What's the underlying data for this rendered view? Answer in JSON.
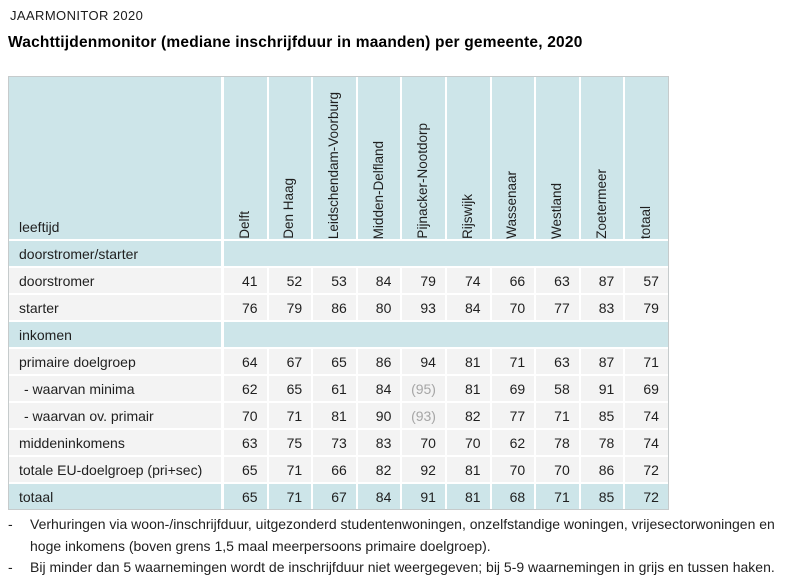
{
  "page": {
    "kicker": "JAARMONITOR 2020",
    "title": "Wachttijdenmonitor (mediane inschrijfduur in maanden) per gemeente, 2020"
  },
  "colors": {
    "header_blue": "#cde5e9",
    "cell_gray": "#f3f3f3",
    "muted_value_gray": "#a6a6a6",
    "text": "#1f1f1f"
  },
  "table": {
    "corner_label": "leeftijd",
    "columns": [
      "Delft",
      "Den Haag",
      "Leidschendam-Voorburg",
      "Midden-Delfland",
      "Pijnacker-Nootdorp",
      "Rijswijk",
      "Wassenaar",
      "Westland",
      "Zoetermeer",
      "totaal"
    ],
    "rows": [
      {
        "type": "section",
        "label": "doorstromer/starter"
      },
      {
        "type": "data",
        "label": "doorstromer",
        "values": [
          "41",
          "52",
          "53",
          "84",
          "79",
          "74",
          "66",
          "63",
          "87",
          "57"
        ]
      },
      {
        "type": "data",
        "label": "starter",
        "values": [
          "76",
          "79",
          "86",
          "80",
          "93",
          "84",
          "70",
          "77",
          "83",
          "79"
        ]
      },
      {
        "type": "section",
        "label": "inkomen"
      },
      {
        "type": "data",
        "label": "primaire doelgroep",
        "values": [
          "64",
          "67",
          "65",
          "86",
          "94",
          "81",
          "71",
          "63",
          "87",
          "71"
        ]
      },
      {
        "type": "data",
        "label": "- waarvan minima",
        "indent": true,
        "values": [
          "62",
          "65",
          "61",
          "84",
          "(95)",
          "81",
          "69",
          "58",
          "91",
          "69"
        ]
      },
      {
        "type": "data",
        "label": "- waarvan ov. primair",
        "indent": true,
        "values": [
          "70",
          "71",
          "81",
          "90",
          "(93)",
          "82",
          "77",
          "71",
          "85",
          "74"
        ]
      },
      {
        "type": "data",
        "label": "middeninkomens",
        "values": [
          "63",
          "75",
          "73",
          "83",
          "70",
          "70",
          "62",
          "78",
          "78",
          "74"
        ]
      },
      {
        "type": "data",
        "label": "totale EU-doelgroep (pri+sec)",
        "values": [
          "65",
          "71",
          "66",
          "82",
          "92",
          "81",
          "70",
          "70",
          "86",
          "72"
        ]
      },
      {
        "type": "total",
        "label": "totaal",
        "values": [
          "65",
          "71",
          "67",
          "84",
          "91",
          "81",
          "68",
          "71",
          "85",
          "72"
        ]
      }
    ]
  },
  "footnotes": {
    "bullet": "-",
    "items": [
      "Verhuringen via woon-/inschrijfduur, uitgezonderd studentenwoningen, onzelfstandige woningen, vrijesectorwoningen en hoge inkomens (boven grens 1,5 maal meerpersoons primaire doelgroep).",
      "Bij minder dan 5 waarnemingen wordt de inschrijfduur niet weergegeven; bij 5-9 waarnemingen in grijs en tussen haken."
    ]
  }
}
